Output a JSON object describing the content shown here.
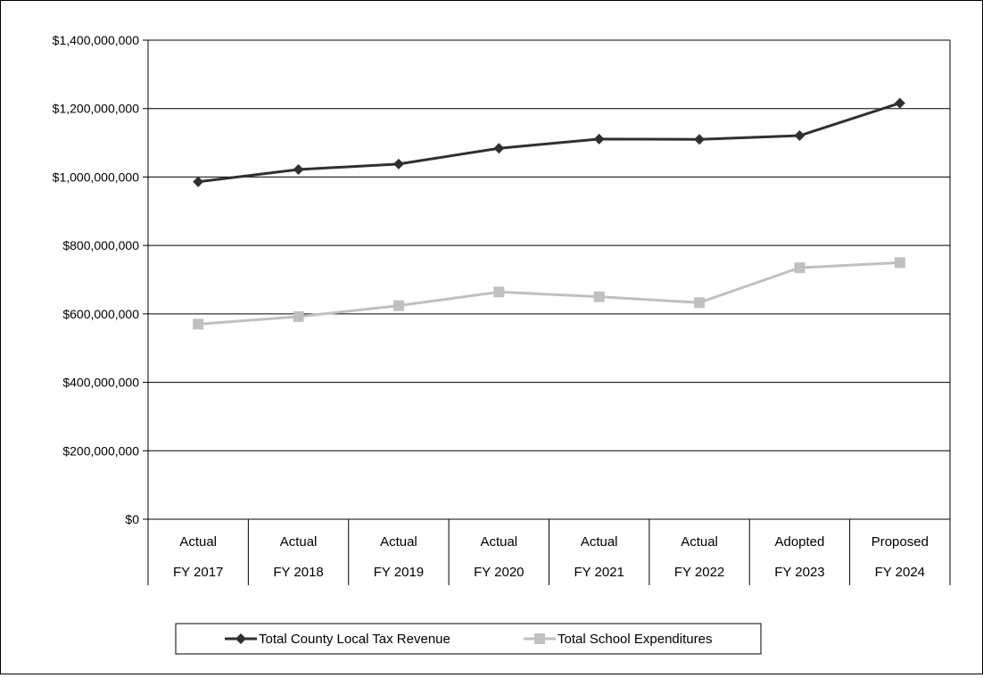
{
  "chart_data": {
    "type": "line",
    "categories": [
      [
        "Actual",
        "FY 2017"
      ],
      [
        "Actual",
        "FY 2018"
      ],
      [
        "Actual",
        "FY 2019"
      ],
      [
        "Actual",
        "FY 2020"
      ],
      [
        "Actual",
        "FY 2021"
      ],
      [
        "Actual",
        "FY 2022"
      ],
      [
        "Adopted",
        "FY 2023"
      ],
      [
        "Proposed",
        "FY 2024"
      ]
    ],
    "series": [
      {
        "name": "Total County Local Tax Revenue",
        "color": "#303030",
        "marker": "diamond",
        "values": [
          986000000,
          1022000000,
          1038000000,
          1084000000,
          1111000000,
          1110000000,
          1121000000,
          1216000000
        ]
      },
      {
        "name": "Total School Expenditures",
        "color": "#c0c0c0",
        "marker": "square",
        "values": [
          570000000,
          592000000,
          624000000,
          664000000,
          650000000,
          633000000,
          735000000,
          750000000
        ]
      }
    ],
    "ylim": [
      0,
      1400000000
    ],
    "yticks": [
      "$0",
      "$200,000,000",
      "$400,000,000",
      "$600,000,000",
      "$800,000,000",
      "$1,000,000,000",
      "$1,200,000,000",
      "$1,400,000,000"
    ],
    "grid": true,
    "legend_position": "bottom"
  }
}
